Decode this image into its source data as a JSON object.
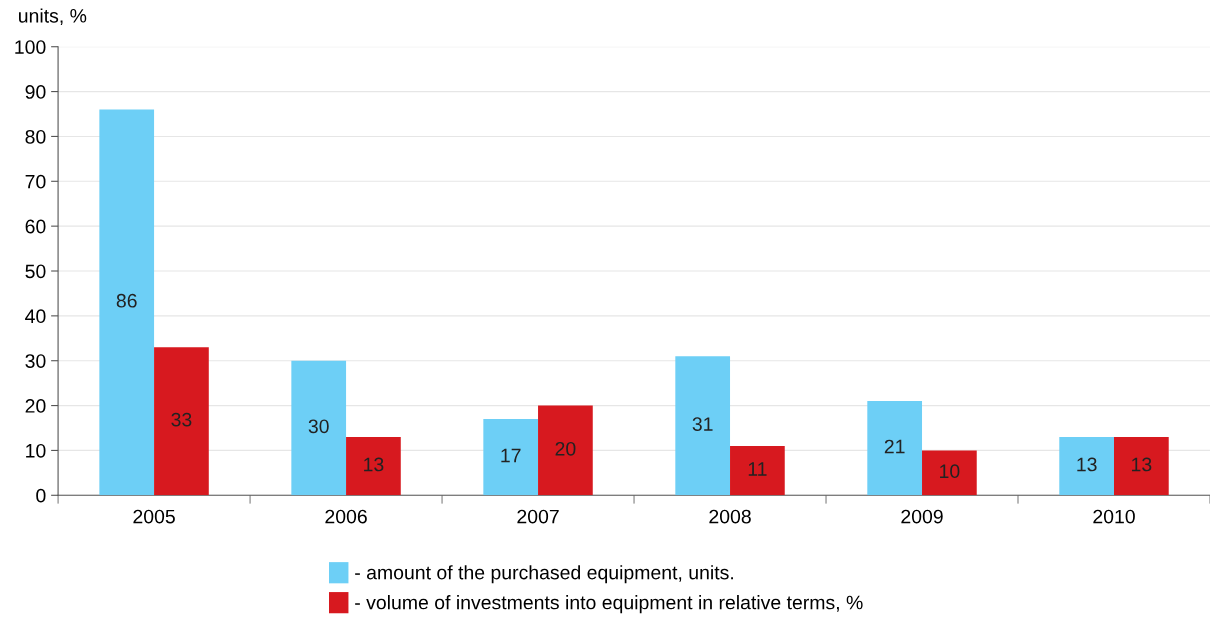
{
  "chart_data": {
    "type": "bar",
    "ylabel": "units, %",
    "categories": [
      "2005",
      "2006",
      "2007",
      "2008",
      "2009",
      "2010"
    ],
    "series": [
      {
        "name": "- amount of the purchased equipment, units.",
        "color": "#6dcff6",
        "values": [
          86,
          30,
          17,
          31,
          21,
          13
        ]
      },
      {
        "name": "- volume of investments into equipment in relative terms, %",
        "color": "#d7191f",
        "values": [
          33,
          13,
          20,
          11,
          10,
          13
        ]
      }
    ],
    "ylim": [
      0,
      100
    ],
    "yticks": [
      0,
      10,
      20,
      30,
      40,
      50,
      60,
      70,
      80,
      90,
      100
    ],
    "grid": "y",
    "legend": "bottom",
    "data_labels": true
  }
}
